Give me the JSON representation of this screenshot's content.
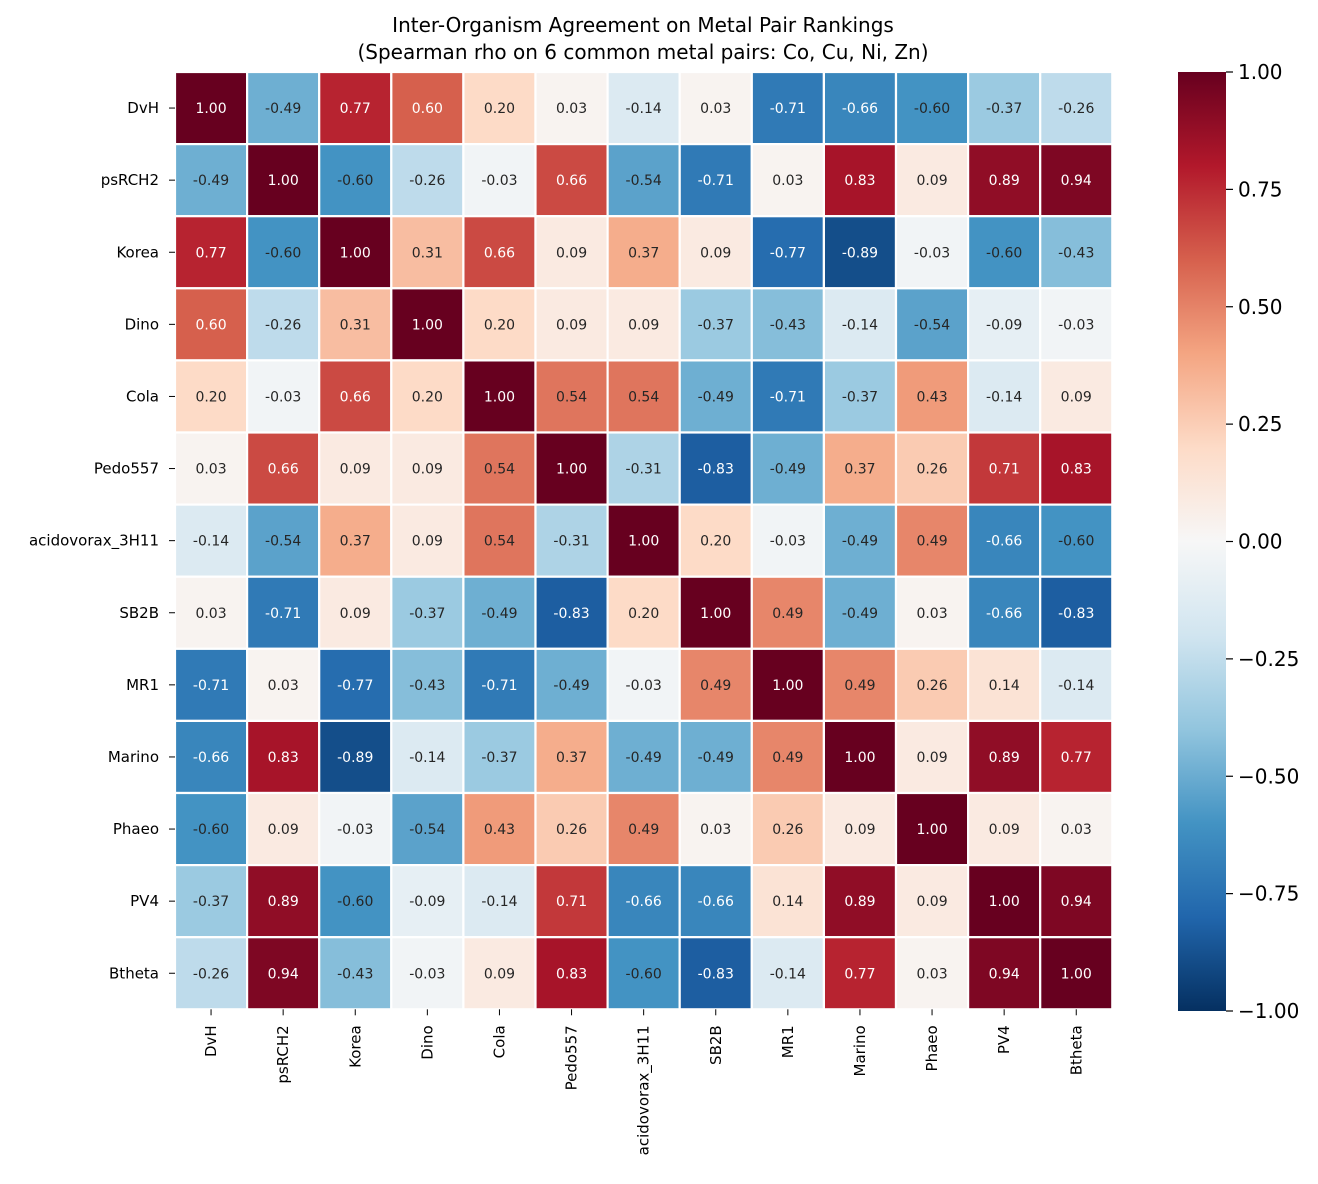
{
  "chart_data": {
    "type": "heatmap",
    "title": "Inter-Organism Agreement on Metal Pair Rankings",
    "subtitle": "(Spearman rho on 6 common metal pairs: Co, Cu, Ni, Zn)",
    "rows": [
      "DvH",
      "psRCH2",
      "Korea",
      "Dino",
      "Cola",
      "Pedo557",
      "acidovorax_3H11",
      "SB2B",
      "MR1",
      "Marino",
      "Phaeo",
      "PV4",
      "Btheta"
    ],
    "columns": [
      "DvH",
      "psRCH2",
      "Korea",
      "Dino",
      "Cola",
      "Pedo557",
      "acidovorax_3H11",
      "SB2B",
      "MR1",
      "Marino",
      "Phaeo",
      "PV4",
      "Btheta"
    ],
    "values": [
      [
        1.0,
        -0.49,
        0.77,
        0.6,
        0.2,
        0.03,
        -0.14,
        0.03,
        -0.71,
        -0.66,
        -0.6,
        -0.37,
        -0.26
      ],
      [
        -0.49,
        1.0,
        -0.6,
        -0.26,
        -0.03,
        0.66,
        -0.54,
        -0.71,
        0.03,
        0.83,
        0.09,
        0.89,
        0.94
      ],
      [
        0.77,
        -0.6,
        1.0,
        0.31,
        0.66,
        0.09,
        0.37,
        0.09,
        -0.77,
        -0.89,
        -0.03,
        -0.6,
        -0.43
      ],
      [
        0.6,
        -0.26,
        0.31,
        1.0,
        0.2,
        0.09,
        0.09,
        -0.37,
        -0.43,
        -0.14,
        -0.54,
        -0.09,
        -0.03
      ],
      [
        0.2,
        -0.03,
        0.66,
        0.2,
        1.0,
        0.54,
        0.54,
        -0.49,
        -0.71,
        -0.37,
        0.43,
        -0.14,
        0.09
      ],
      [
        0.03,
        0.66,
        0.09,
        0.09,
        0.54,
        1.0,
        -0.31,
        -0.83,
        -0.49,
        0.37,
        0.26,
        0.71,
        0.83
      ],
      [
        -0.14,
        -0.54,
        0.37,
        0.09,
        0.54,
        -0.31,
        1.0,
        0.2,
        -0.03,
        -0.49,
        0.49,
        -0.66,
        -0.6
      ],
      [
        0.03,
        -0.71,
        0.09,
        -0.37,
        -0.49,
        -0.83,
        0.2,
        1.0,
        0.49,
        -0.49,
        0.03,
        -0.66,
        -0.83
      ],
      [
        -0.71,
        0.03,
        -0.77,
        -0.43,
        -0.71,
        -0.49,
        -0.03,
        0.49,
        1.0,
        0.49,
        0.26,
        0.14,
        -0.14
      ],
      [
        -0.66,
        0.83,
        -0.89,
        -0.14,
        -0.37,
        0.37,
        -0.49,
        -0.49,
        0.49,
        1.0,
        0.09,
        0.89,
        0.77
      ],
      [
        -0.6,
        0.09,
        -0.03,
        -0.54,
        0.43,
        0.26,
        0.49,
        0.03,
        0.26,
        0.09,
        1.0,
        0.09,
        0.03
      ],
      [
        -0.37,
        0.89,
        -0.6,
        -0.09,
        -0.14,
        0.71,
        -0.66,
        -0.66,
        0.14,
        0.89,
        0.09,
        1.0,
        0.94
      ],
      [
        -0.26,
        0.94,
        -0.43,
        -0.03,
        0.09,
        0.83,
        -0.6,
        -0.83,
        -0.14,
        0.77,
        0.03,
        0.94,
        1.0
      ]
    ],
    "colormap": "RdBu_r",
    "vmin": -1.0,
    "vmax": 1.0,
    "colorbar_ticks": [
      "1.00",
      "0.75",
      "0.50",
      "0.25",
      "0.00",
      "−0.25",
      "−0.50",
      "−0.75",
      "−1.00"
    ],
    "colorbar_tick_values": [
      1.0,
      0.75,
      0.5,
      0.25,
      0.0,
      -0.25,
      -0.5,
      -0.75,
      -1.0
    ],
    "annotations": true,
    "annotation_format": "2 decimals",
    "cell_border_color": "#ffffff"
  }
}
